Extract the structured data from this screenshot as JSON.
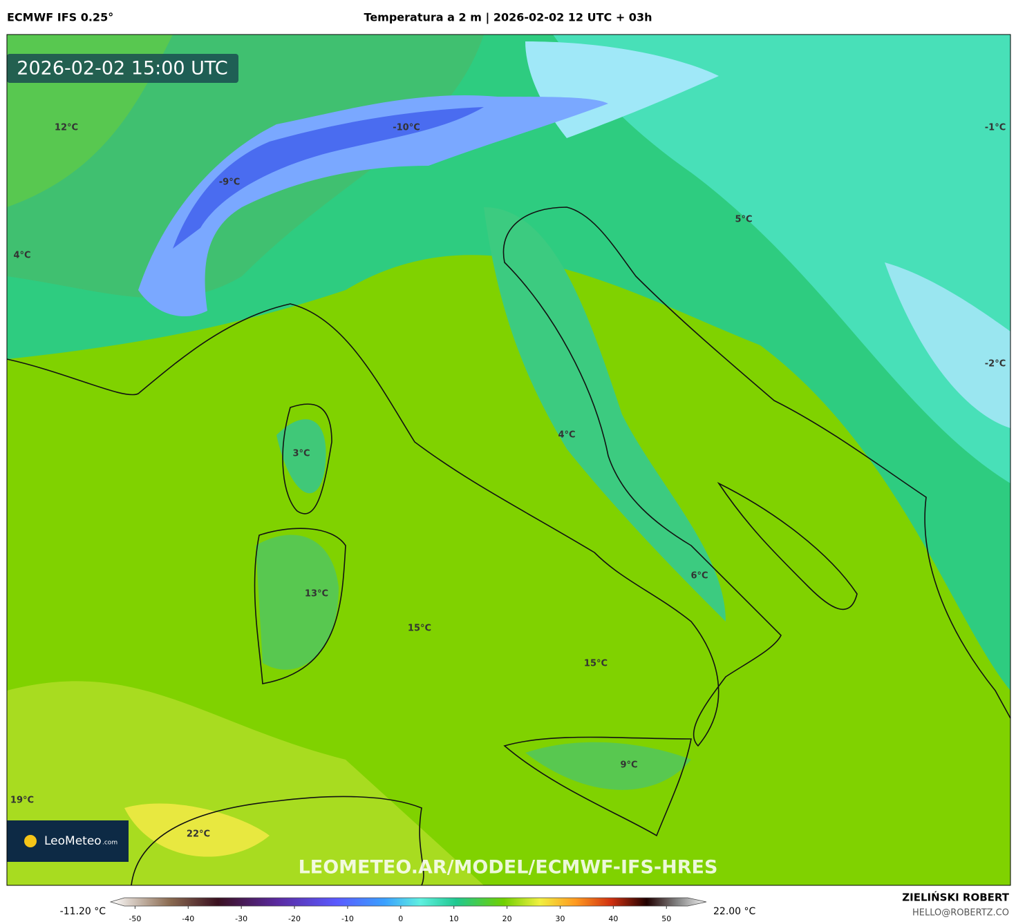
{
  "header": {
    "model": "ECMWF IFS 0.25°",
    "title": "Temperatura a 2 m | 2026-02-02 12 UTC + 03h"
  },
  "map": {
    "timestamp": "2026-02-02 15:00 UTC",
    "labels": [
      "12°C",
      "-10°C",
      "-9°C",
      "4°C",
      "5°C",
      "-1°C",
      "-2°C",
      "4°C",
      "3°C",
      "6°C",
      "13°C",
      "15°C",
      "15°C",
      "9°C",
      "19°C",
      "22°C"
    ],
    "watermark": "LEOMETEO.AR/MODEL/ECMWF-IFS-HRES",
    "logo": {
      "name": "LeoMeteo",
      "suffix": ".com"
    }
  },
  "colorbar": {
    "min_label": "-11.20 °C",
    "max_label": "22.00 °C",
    "lim": [
      -52,
      54
    ],
    "ticks": [
      -50,
      -40,
      -30,
      -20,
      -10,
      0,
      10,
      20,
      30,
      40,
      50
    ]
  },
  "footer": {
    "author": "ZIELIŃSKI ROBERT",
    "email": "HELLO@ROBERTZ.CO"
  }
}
